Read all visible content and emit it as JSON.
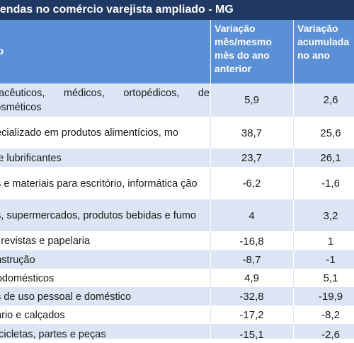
{
  "title": "vendas no comércio varejista ampliado - MG",
  "header": {
    "col1": "o",
    "col2_lines": [
      "Variação",
      "mês/mesmo",
      "mês do ano",
      "anterior"
    ],
    "col3_lines": [
      "Variação",
      "acumulada",
      "no ano"
    ]
  },
  "rows": [
    {
      "label": "macêuticos, médicos, ortopédicos, de cosméticos",
      "mes": "5,9",
      "acum": "2,6"
    },
    {
      "label": "pecializado em produtos alimentícios, mo",
      "mes": "38,7",
      "acum": "25,6"
    },
    {
      "label": "s e lubrificantes",
      "mes": "23,7",
      "acum": "26,1"
    },
    {
      "label": "os e materiais para escritório, informática ção",
      "mes": "-6,2",
      "acum": "-1,6"
    },
    {
      "label": "os, supermercados, produtos bebidas e fumo",
      "mes": "4",
      "acum": "3,2"
    },
    {
      "label": "s, revistas e papelaria",
      "mes": "-16,8",
      "acum": "1"
    },
    {
      "label": "onstrução",
      "mes": "-8,7",
      "acum": "-1"
    },
    {
      "label": "trodomésticos",
      "mes": "4,9",
      "acum": "5,1"
    },
    {
      "label": "os de uso pessoal e doméstico",
      "mes": "-32,8",
      "acum": "-19,9"
    },
    {
      "label": "uário e calçados",
      "mes": "-17,2",
      "acum": "-8,2"
    },
    {
      "label": "tocicletas, partes e peças",
      "mes": "-15,1",
      "acum": "-2,6"
    }
  ]
}
